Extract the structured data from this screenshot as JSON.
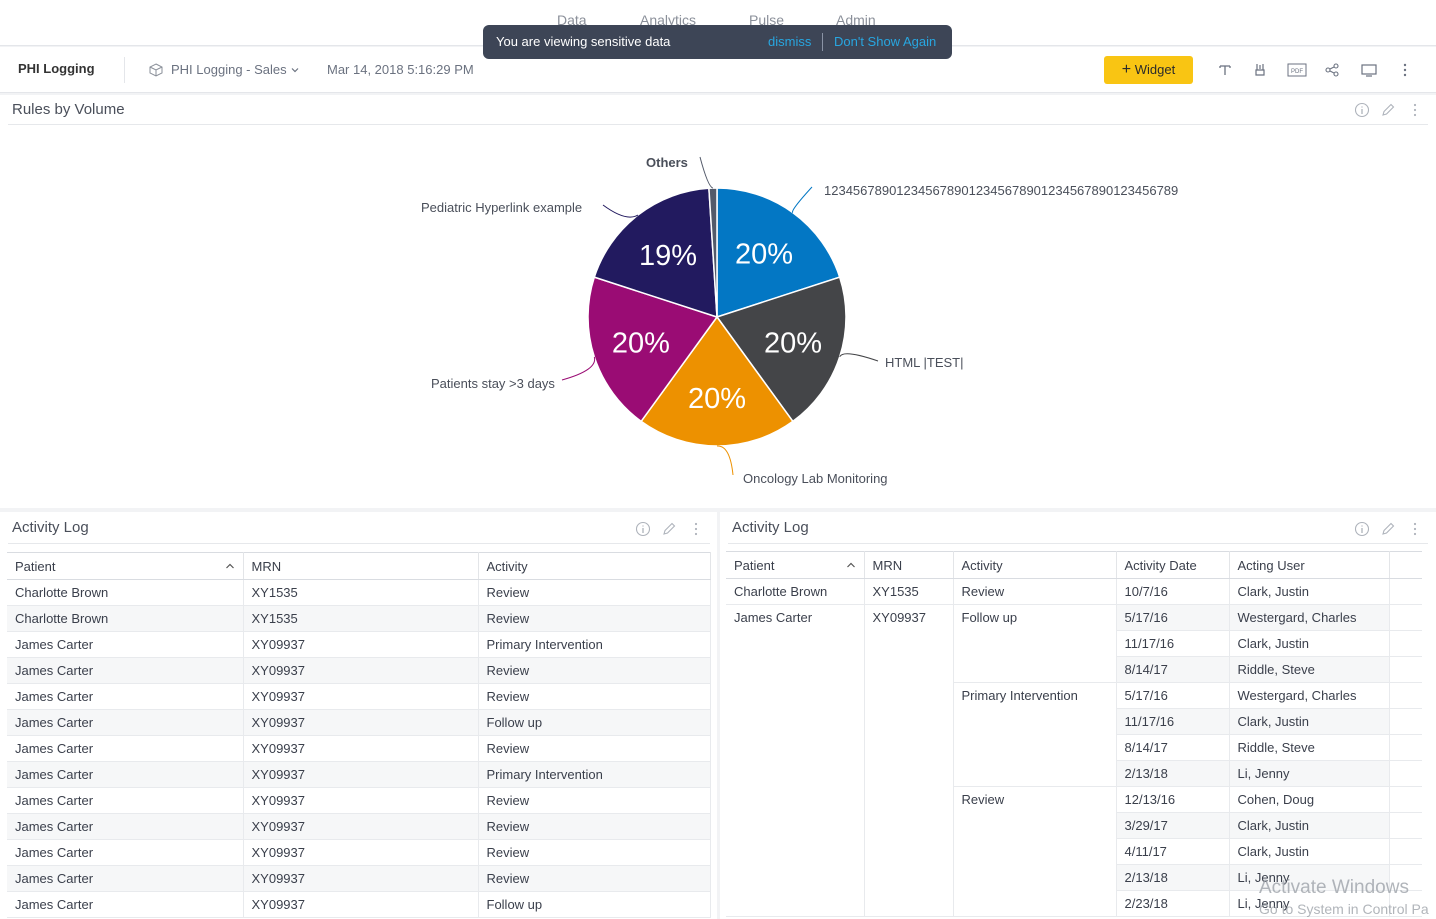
{
  "topnav": {
    "items": [
      {
        "label": "Data"
      },
      {
        "label": "Analytics"
      },
      {
        "label": "Pulse"
      },
      {
        "label": "Admin"
      }
    ]
  },
  "toast": {
    "message": "You are viewing sensitive data",
    "dismiss": "dismiss",
    "dont_show": "Don't Show Again"
  },
  "toolbar": {
    "title": "PHI Logging",
    "dashboard": "PHI Logging - Sales",
    "date": "Mar 14, 2018 5:16:29 PM",
    "widget_button": "Widget",
    "icons": [
      "text-icon",
      "filter-icon",
      "pdf-icon",
      "share-icon",
      "screen-icon",
      "more-icon"
    ],
    "pdf_label": "PDF"
  },
  "pie_panel": {
    "title": "Rules by Volume"
  },
  "chart_data": {
    "type": "pie",
    "title": "Rules by Volume",
    "slices": [
      {
        "label": "1234567890123456789012345678901234567890123456789",
        "value": 20,
        "display": "20%",
        "color": "#0377c4"
      },
      {
        "label": "HTML |TEST|",
        "value": 20,
        "display": "20%",
        "color": "#444548"
      },
      {
        "label": "Oncology Lab Monitoring",
        "value": 20,
        "display": "20%",
        "color": "#ed9100"
      },
      {
        "label": "Patients stay >3 days",
        "value": 20,
        "display": "20%",
        "color": "#9a0c74"
      },
      {
        "label": "Pediatric Hyperlink example",
        "value": 19,
        "display": "19%",
        "color": "#221a5f"
      },
      {
        "label": "Others",
        "value": 1,
        "display": "",
        "color": "#535a6a"
      }
    ]
  },
  "activity_left": {
    "title": "Activity Log",
    "columns": [
      "Patient",
      "MRN",
      "Activity"
    ],
    "rows": [
      [
        "Charlotte Brown",
        "XY1535",
        "Review"
      ],
      [
        "Charlotte Brown",
        "XY1535",
        "Review"
      ],
      [
        "James Carter",
        "XY09937",
        "Primary Intervention"
      ],
      [
        "James Carter",
        "XY09937",
        "Review"
      ],
      [
        "James Carter",
        "XY09937",
        "Review"
      ],
      [
        "James Carter",
        "XY09937",
        "Follow up"
      ],
      [
        "James Carter",
        "XY09937",
        "Review"
      ],
      [
        "James Carter",
        "XY09937",
        "Primary Intervention"
      ],
      [
        "James Carter",
        "XY09937",
        "Review"
      ],
      [
        "James Carter",
        "XY09937",
        "Review"
      ],
      [
        "James Carter",
        "XY09937",
        "Review"
      ],
      [
        "James Carter",
        "XY09937",
        "Review"
      ],
      [
        "James Carter",
        "XY09937",
        "Follow up"
      ]
    ]
  },
  "activity_right": {
    "title": "Activity Log",
    "columns": [
      "Patient",
      "MRN",
      "Activity",
      "Activity Date",
      "Acting User"
    ],
    "groups": [
      {
        "patient": "Charlotte Brown",
        "mrn": "XY1535",
        "activities": [
          {
            "activity": "Review",
            "entries": [
              [
                "10/7/16",
                "Clark, Justin"
              ]
            ]
          }
        ]
      },
      {
        "patient": "James Carter",
        "mrn": "XY09937",
        "activities": [
          {
            "activity": "Follow up",
            "entries": [
              [
                "5/17/16",
                "Westergard, Charles"
              ],
              [
                "11/17/16",
                "Clark, Justin"
              ],
              [
                "8/14/17",
                "Riddle, Steve"
              ]
            ]
          },
          {
            "activity": "Primary Intervention",
            "entries": [
              [
                "5/17/16",
                "Westergard, Charles"
              ],
              [
                "11/17/16",
                "Clark, Justin"
              ],
              [
                "8/14/17",
                "Riddle, Steve"
              ],
              [
                "2/13/18",
                "Li, Jenny"
              ]
            ]
          },
          {
            "activity": "Review",
            "entries": [
              [
                "12/13/16",
                "Cohen, Doug"
              ],
              [
                "3/29/17",
                "Clark, Justin"
              ],
              [
                "4/11/17",
                "Clark, Justin"
              ],
              [
                "2/13/18",
                "Li, Jenny"
              ],
              [
                "2/23/18",
                "Li, Jenny"
              ]
            ]
          }
        ]
      }
    ]
  },
  "watermark": {
    "line1": "Activate Windows",
    "line2": "Go to System in Control Pa"
  }
}
